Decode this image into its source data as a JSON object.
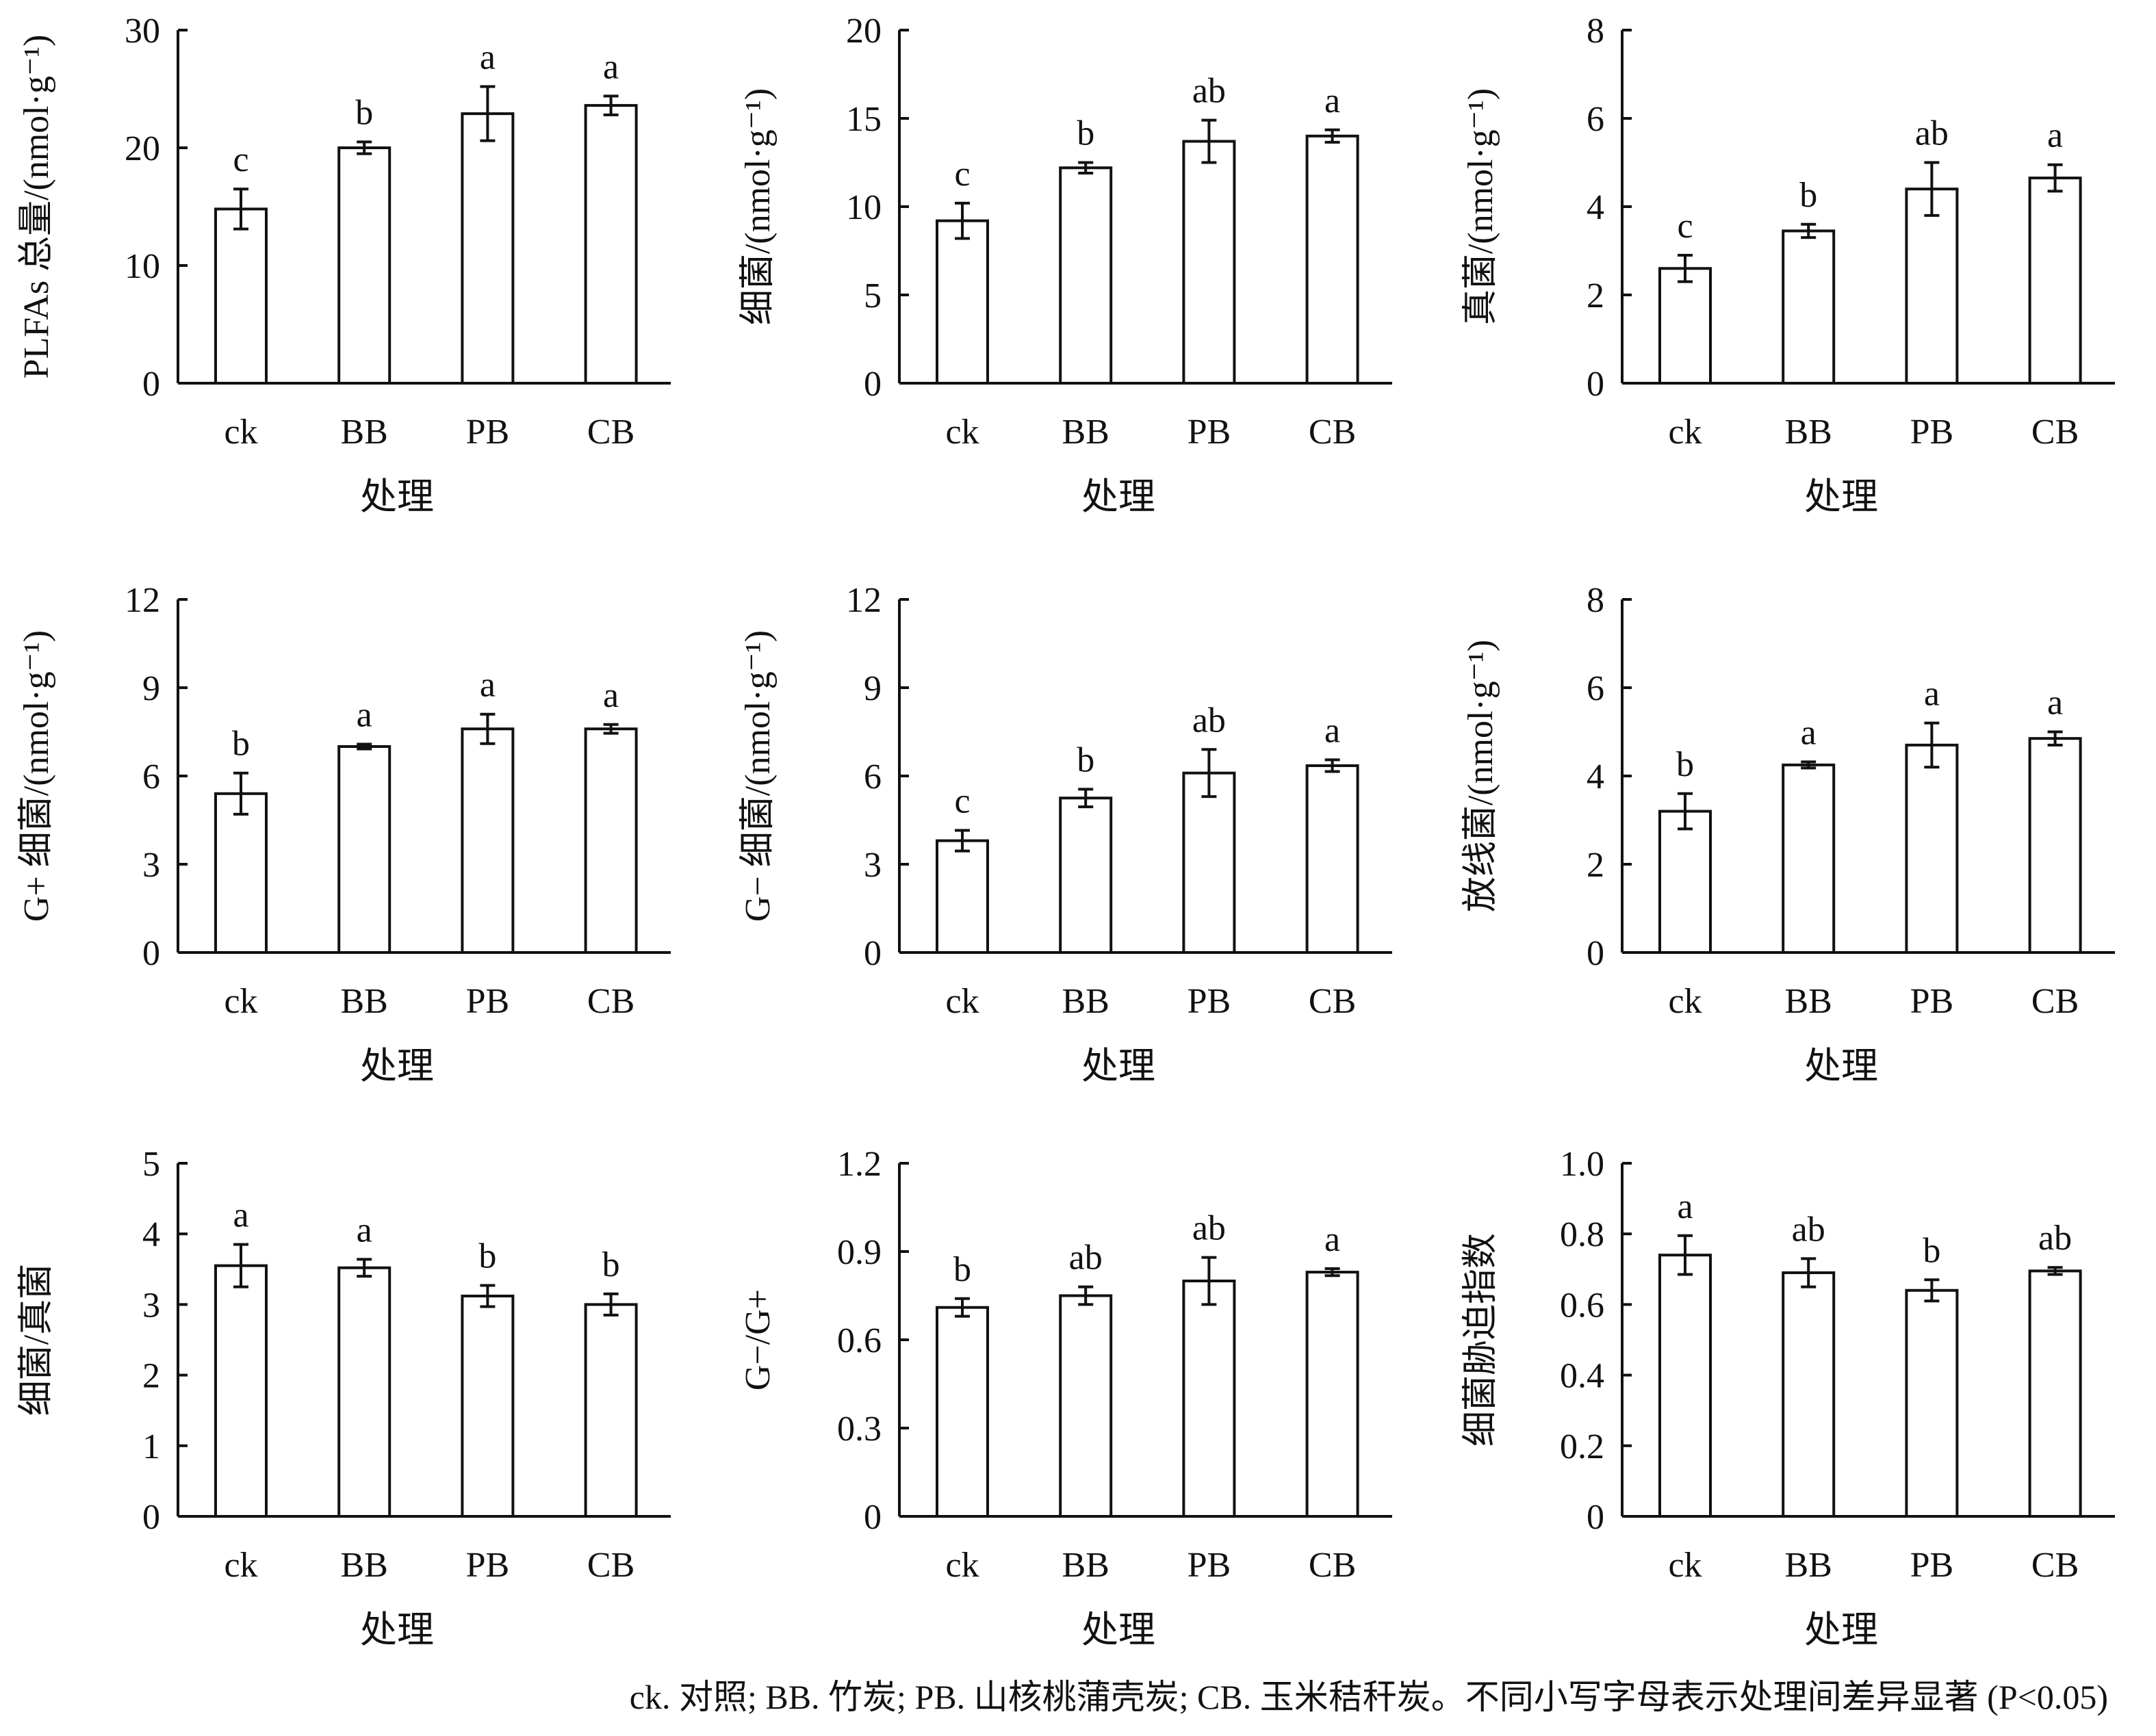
{
  "chart_data": [
    {
      "type": "bar",
      "title": "",
      "ylabel": "PLFAs 总量/(nmol·g⁻¹)",
      "xlabel": "处理",
      "categories": [
        "ck",
        "BB",
        "PB",
        "CB"
      ],
      "values": [
        14.8,
        20.0,
        22.9,
        23.6
      ],
      "errors": [
        1.7,
        0.5,
        2.3,
        0.8
      ],
      "letters": [
        "c",
        "b",
        "a",
        "a"
      ],
      "ylim": [
        0,
        30
      ],
      "yticks": [
        "0",
        "10",
        "20",
        "30"
      ]
    },
    {
      "type": "bar",
      "title": "",
      "ylabel": "细菌/(nmol·g⁻¹)",
      "xlabel": "处理",
      "categories": [
        "ck",
        "BB",
        "PB",
        "CB"
      ],
      "values": [
        9.2,
        12.2,
        13.7,
        14.0
      ],
      "errors": [
        1.0,
        0.3,
        1.2,
        0.35
      ],
      "letters": [
        "c",
        "b",
        "ab",
        "a"
      ],
      "ylim": [
        0,
        20
      ],
      "yticks": [
        "0",
        "5",
        "10",
        "15",
        "20"
      ]
    },
    {
      "type": "bar",
      "title": "",
      "ylabel": "真菌/(nmol·g⁻¹)",
      "xlabel": "处理",
      "categories": [
        "ck",
        "BB",
        "PB",
        "CB"
      ],
      "values": [
        2.6,
        3.45,
        4.4,
        4.65
      ],
      "errors": [
        0.3,
        0.15,
        0.6,
        0.3
      ],
      "letters": [
        "c",
        "b",
        "ab",
        "a"
      ],
      "ylim": [
        0,
        8
      ],
      "yticks": [
        "0",
        "2",
        "4",
        "6",
        "8"
      ]
    },
    {
      "type": "bar",
      "title": "",
      "ylabel": "G+ 细菌/(nmol·g⁻¹)",
      "xlabel": "处理",
      "categories": [
        "ck",
        "BB",
        "PB",
        "CB"
      ],
      "values": [
        5.4,
        7.0,
        7.6,
        7.6
      ],
      "errors": [
        0.7,
        0.08,
        0.5,
        0.15
      ],
      "letters": [
        "b",
        "a",
        "a",
        "a"
      ],
      "ylim": [
        0,
        12
      ],
      "yticks": [
        "0",
        "3",
        "6",
        "9",
        "12"
      ]
    },
    {
      "type": "bar",
      "title": "",
      "ylabel": "G− 细菌/(nmol·g⁻¹)",
      "xlabel": "处理",
      "categories": [
        "ck",
        "BB",
        "PB",
        "CB"
      ],
      "values": [
        3.8,
        5.25,
        6.1,
        6.35
      ],
      "errors": [
        0.35,
        0.3,
        0.8,
        0.2
      ],
      "letters": [
        "c",
        "b",
        "ab",
        "a"
      ],
      "ylim": [
        0,
        12
      ],
      "yticks": [
        "0",
        "3",
        "6",
        "9",
        "12"
      ]
    },
    {
      "type": "bar",
      "title": "",
      "ylabel": "放线菌/(nmol·g⁻¹)",
      "xlabel": "处理",
      "categories": [
        "ck",
        "BB",
        "PB",
        "CB"
      ],
      "values": [
        3.2,
        4.25,
        4.7,
        4.85
      ],
      "errors": [
        0.4,
        0.07,
        0.5,
        0.15
      ],
      "letters": [
        "b",
        "a",
        "a",
        "a"
      ],
      "ylim": [
        0,
        8
      ],
      "yticks": [
        "0",
        "2",
        "4",
        "6",
        "8"
      ]
    },
    {
      "type": "bar",
      "title": "",
      "ylabel": "细菌/真菌",
      "xlabel": "处理",
      "categories": [
        "ck",
        "BB",
        "PB",
        "CB"
      ],
      "values": [
        3.55,
        3.52,
        3.12,
        3.0
      ],
      "errors": [
        0.3,
        0.12,
        0.15,
        0.15
      ],
      "letters": [
        "a",
        "a",
        "b",
        "b"
      ],
      "ylim": [
        0,
        5
      ],
      "yticks": [
        "0",
        "1",
        "2",
        "3",
        "4",
        "5"
      ]
    },
    {
      "type": "bar",
      "title": "",
      "ylabel": "G−/G+",
      "xlabel": "处理",
      "categories": [
        "ck",
        "BB",
        "PB",
        "CB"
      ],
      "values": [
        0.71,
        0.75,
        0.8,
        0.83
      ],
      "errors": [
        0.03,
        0.03,
        0.08,
        0.012
      ],
      "letters": [
        "b",
        "ab",
        "ab",
        "a"
      ],
      "ylim": [
        0,
        1.2
      ],
      "yticks": [
        "0",
        "0.3",
        "0.6",
        "0.9",
        "1.2"
      ]
    },
    {
      "type": "bar",
      "title": "",
      "ylabel": "细菌胁迫指数",
      "xlabel": "处理",
      "categories": [
        "ck",
        "BB",
        "PB",
        "CB"
      ],
      "values": [
        0.74,
        0.69,
        0.64,
        0.695
      ],
      "errors": [
        0.055,
        0.04,
        0.03,
        0.01
      ],
      "letters": [
        "a",
        "ab",
        "b",
        "ab"
      ],
      "ylim": [
        0,
        1.0
      ],
      "yticks": [
        "0",
        "0.2",
        "0.4",
        "0.6",
        "0.8",
        "1.0"
      ]
    }
  ],
  "caption": "ck. 对照; BB. 竹炭; PB. 山核桃蒲壳炭; CB. 玉米秸秆炭。不同小写字母表示处理间差异显著 (P<0.05)"
}
